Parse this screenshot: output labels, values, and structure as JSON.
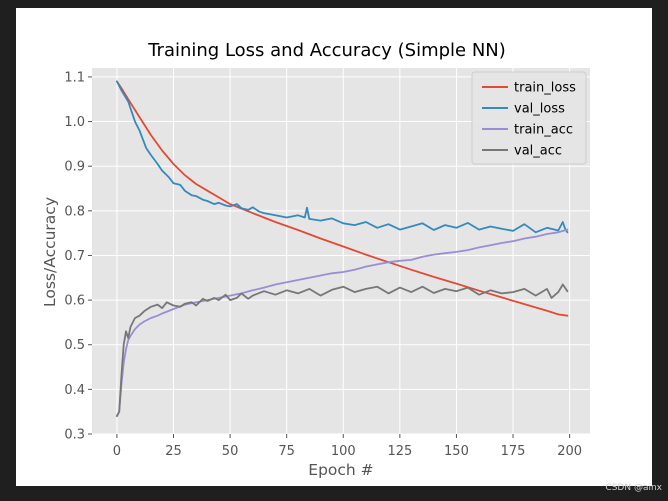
{
  "watermark": "CSDN @ainx",
  "chart_data": {
    "type": "line",
    "title": "Training Loss and Accuracy (Simple NN)",
    "xlabel": "Epoch #",
    "ylabel": "Loss/Accuracy",
    "xlim": [
      -11,
      209
    ],
    "ylim": [
      0.3,
      1.12
    ],
    "xticks": [
      0,
      25,
      50,
      75,
      100,
      125,
      150,
      175,
      200
    ],
    "yticks": [
      0.3,
      0.4,
      0.5,
      0.6,
      0.7,
      0.8,
      0.9,
      1.0,
      1.1
    ],
    "grid": true,
    "legend_position": "top-right",
    "style": {
      "plot_bg": "#E5E5E5",
      "grid": "#FFFFFF"
    },
    "series": [
      {
        "name": "train_loss",
        "color": "#E24A33",
        "x": [
          0,
          2,
          5,
          10,
          15,
          20,
          25,
          30,
          35,
          40,
          45,
          50,
          60,
          70,
          80,
          90,
          100,
          110,
          120,
          130,
          140,
          150,
          160,
          170,
          180,
          190,
          195,
          199
        ],
        "y": [
          1.09,
          1.075,
          1.05,
          1.01,
          0.97,
          0.935,
          0.905,
          0.88,
          0.86,
          0.845,
          0.83,
          0.815,
          0.795,
          0.775,
          0.757,
          0.738,
          0.72,
          0.702,
          0.685,
          0.668,
          0.652,
          0.637,
          0.621,
          0.606,
          0.591,
          0.576,
          0.568,
          0.565
        ]
      },
      {
        "name": "val_loss",
        "color": "#348ABD",
        "x": [
          0,
          2,
          5,
          8,
          10,
          13,
          15,
          18,
          20,
          23,
          25,
          28,
          30,
          33,
          35,
          38,
          40,
          43,
          45,
          48,
          50,
          53,
          55,
          58,
          60,
          63,
          65,
          70,
          75,
          80,
          83,
          84,
          85,
          90,
          95,
          100,
          105,
          110,
          115,
          120,
          125,
          130,
          135,
          140,
          145,
          150,
          155,
          160,
          165,
          170,
          175,
          180,
          185,
          190,
          195,
          197,
          198,
          199
        ],
        "y": [
          1.09,
          1.07,
          1.045,
          1.0,
          0.98,
          0.94,
          0.925,
          0.905,
          0.89,
          0.875,
          0.862,
          0.858,
          0.845,
          0.835,
          0.833,
          0.825,
          0.822,
          0.815,
          0.818,
          0.812,
          0.81,
          0.815,
          0.806,
          0.802,
          0.808,
          0.798,
          0.795,
          0.79,
          0.785,
          0.79,
          0.785,
          0.807,
          0.782,
          0.778,
          0.783,
          0.772,
          0.768,
          0.775,
          0.762,
          0.77,
          0.758,
          0.765,
          0.772,
          0.757,
          0.768,
          0.762,
          0.773,
          0.758,
          0.765,
          0.76,
          0.755,
          0.77,
          0.752,
          0.762,
          0.756,
          0.775,
          0.76,
          0.752
        ]
      },
      {
        "name": "train_acc",
        "color": "#988ED5",
        "x": [
          0,
          1,
          2,
          3,
          4,
          5,
          6,
          8,
          10,
          12,
          15,
          18,
          20,
          25,
          30,
          35,
          40,
          45,
          50,
          55,
          60,
          65,
          70,
          75,
          80,
          85,
          90,
          95,
          100,
          105,
          110,
          115,
          120,
          125,
          130,
          135,
          140,
          145,
          150,
          155,
          160,
          165,
          170,
          175,
          180,
          185,
          190,
          195,
          199
        ],
        "y": [
          0.34,
          0.35,
          0.41,
          0.46,
          0.49,
          0.51,
          0.52,
          0.535,
          0.545,
          0.552,
          0.56,
          0.565,
          0.57,
          0.58,
          0.59,
          0.595,
          0.6,
          0.605,
          0.61,
          0.615,
          0.622,
          0.628,
          0.635,
          0.64,
          0.645,
          0.65,
          0.655,
          0.66,
          0.663,
          0.668,
          0.675,
          0.68,
          0.685,
          0.688,
          0.69,
          0.697,
          0.702,
          0.705,
          0.708,
          0.712,
          0.718,
          0.723,
          0.728,
          0.732,
          0.738,
          0.742,
          0.748,
          0.752,
          0.758
        ]
      },
      {
        "name": "val_acc",
        "color": "#777777",
        "x": [
          0,
          1,
          2,
          3,
          4,
          5,
          6,
          8,
          10,
          12,
          15,
          18,
          20,
          22,
          25,
          28,
          30,
          33,
          35,
          38,
          40,
          43,
          45,
          48,
          50,
          53,
          55,
          58,
          60,
          65,
          70,
          75,
          80,
          85,
          90,
          95,
          100,
          105,
          110,
          115,
          120,
          125,
          130,
          135,
          140,
          145,
          150,
          155,
          160,
          165,
          170,
          175,
          180,
          185,
          190,
          192,
          195,
          197,
          199
        ],
        "y": [
          0.34,
          0.35,
          0.43,
          0.5,
          0.53,
          0.515,
          0.54,
          0.56,
          0.565,
          0.575,
          0.585,
          0.59,
          0.582,
          0.595,
          0.588,
          0.585,
          0.592,
          0.595,
          0.588,
          0.603,
          0.598,
          0.605,
          0.6,
          0.612,
          0.6,
          0.605,
          0.615,
          0.603,
          0.61,
          0.62,
          0.612,
          0.622,
          0.615,
          0.625,
          0.61,
          0.623,
          0.63,
          0.618,
          0.625,
          0.63,
          0.615,
          0.628,
          0.618,
          0.63,
          0.616,
          0.625,
          0.62,
          0.628,
          0.612,
          0.622,
          0.615,
          0.618,
          0.625,
          0.61,
          0.625,
          0.605,
          0.618,
          0.635,
          0.62
        ]
      }
    ]
  }
}
